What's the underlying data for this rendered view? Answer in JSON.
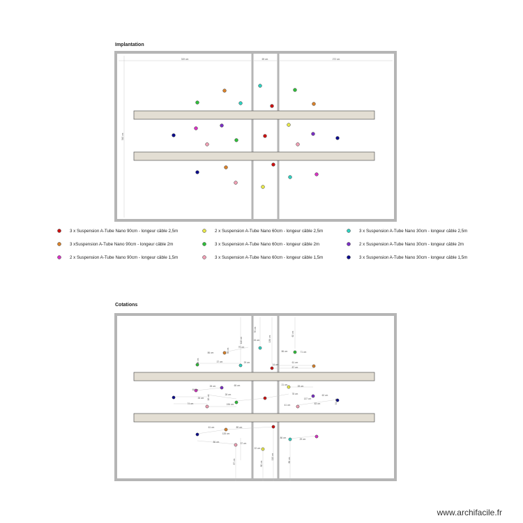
{
  "sections": {
    "implantation_title": "Implantation",
    "cotations_title": "Cotations"
  },
  "dimensions_top": {
    "left_width": "319 cm",
    "mid_width": "69 cm",
    "right_width": "272 cm",
    "height": "340 cm"
  },
  "colors": {
    "red": "#cc1111",
    "orange": "#d9822b",
    "magenta": "#d633c2",
    "yellow": "#e8e84a",
    "green": "#2fbf3a",
    "pink": "#f0a0b4",
    "cyan": "#2fd1c0",
    "purple": "#7a2fc4",
    "navy": "#0b0b8c"
  },
  "legend": [
    {
      "color": "red",
      "label": "3 x Suspension A-Tube Nano 90cm - longeur câble 2,5m"
    },
    {
      "color": "yellow",
      "label": "2 x Suspension A-Tube Nano 60cm - longeur câble 2,5m"
    },
    {
      "color": "cyan",
      "label": "3 x Suspension A-Tube Nano 30cm - longeur câble 2,5m"
    },
    {
      "color": "orange",
      "label": "3 xSuspension A-Tube Nano 90cm - longeur câble 2m"
    },
    {
      "color": "green",
      "label": "3 x Suspension A-Tube Nano 60cm - longeur câble 2m"
    },
    {
      "color": "purple",
      "label": "2 x Suspension A-Tube Nano 30cm - longeur câble 2m"
    },
    {
      "color": "magenta",
      "label": "2 x Suspension A-Tube Nano 90cm - longeur câble 1,5m"
    },
    {
      "color": "pink",
      "label": "3 x Suspension A-Tube Nano 60cm - longeur câble 1,5m"
    },
    {
      "color": "navy",
      "label": "3 x Suspension A-Tube Nano 30cm - longeur câble 1,5m"
    }
  ],
  "fixtures": [
    {
      "color": "cyan"
    },
    {
      "color": "orange"
    },
    {
      "color": "green"
    },
    {
      "color": "green"
    },
    {
      "color": "cyan"
    },
    {
      "color": "red"
    },
    {
      "color": "orange"
    },
    {
      "color": "yellow"
    },
    {
      "color": "magenta"
    },
    {
      "color": "purple"
    },
    {
      "color": "navy"
    },
    {
      "color": "red"
    },
    {
      "color": "purple"
    },
    {
      "color": "navy"
    },
    {
      "color": "green"
    },
    {
      "color": "pink"
    },
    {
      "color": "pink"
    },
    {
      "color": "red"
    },
    {
      "color": "orange"
    },
    {
      "color": "navy"
    },
    {
      "color": "magenta"
    },
    {
      "color": "cyan"
    },
    {
      "color": "pink"
    },
    {
      "color": "yellow"
    }
  ],
  "cotations": [
    "110 cm",
    "76 cm",
    "136 cm",
    "62 cm",
    "79 cm",
    "15 cm",
    "86 cm",
    "36 cm",
    "38 cm",
    "37 cm",
    "29 cm",
    "61 cm",
    "87 cm",
    "14 cm",
    "86 cm",
    "71 cm",
    "21 cm",
    "65 cm",
    "28 cm",
    "60 cm",
    "28 cm",
    "78 cm",
    "62 cm",
    "91 cm",
    "16 cm",
    "28 cm",
    "26 cm",
    "137 cm",
    "74 cm",
    "196 cm",
    "41 cm",
    "83 cm",
    "61 cm",
    "89 cm",
    "128 cm",
    "86 cm",
    "37 cm",
    "87 cm",
    "86 cm",
    "22 cm",
    "80 cm",
    "29 cm",
    "110 cm",
    "86 cm"
  ],
  "footer": {
    "site": "www.archifacile.fr"
  }
}
